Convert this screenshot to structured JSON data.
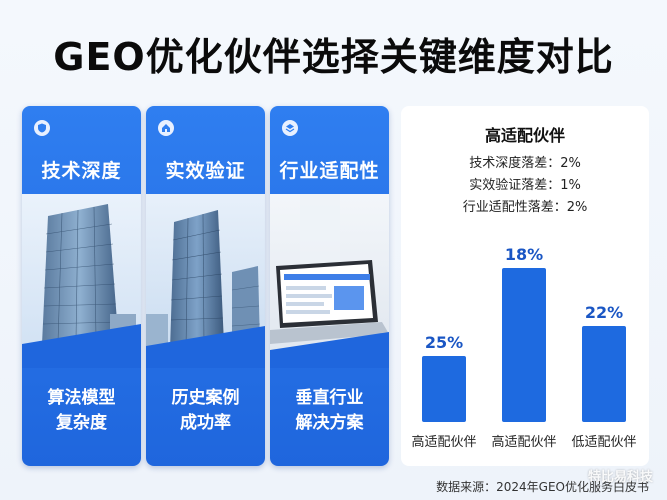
{
  "title": "GEO优化伙伴选择关键维度对比",
  "cards": [
    {
      "head": "技术深度",
      "foot_1": "算法模型",
      "foot_2": "复杂度",
      "icon": "shield-icon"
    },
    {
      "head": "实效验证",
      "foot_1": "历史案例",
      "foot_2": "成功率",
      "icon": "home-icon"
    },
    {
      "head": "行业适配性",
      "foot_1": "垂直行业",
      "foot_2": "解决方案",
      "icon": "layers-icon"
    }
  ],
  "panel": {
    "title": "高适配伙伴",
    "stats": [
      "技术深度落差：2%",
      "实效验证落差：1%",
      "行业适配性落差：2%"
    ]
  },
  "chart_data": {
    "type": "bar",
    "categories": [
      "高适配伙伴",
      "高适配伙伴",
      "低适配伙伴"
    ],
    "values": [
      25,
      18,
      22
    ],
    "value_labels": [
      "25%",
      "18%",
      "22%"
    ],
    "bar_color": "#1e6ae0"
  },
  "footer": "数据来源：2024年GEO优化服务白皮书",
  "watermark": "特比易科技"
}
